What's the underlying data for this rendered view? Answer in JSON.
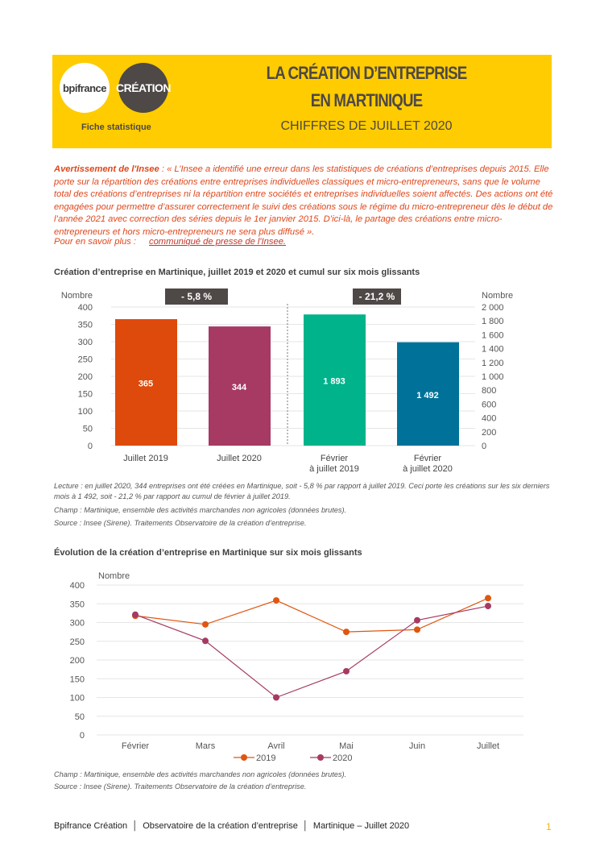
{
  "header": {
    "logo1": "bpifrance",
    "logo2": "CRÉATION",
    "subtitle": "Fiche statistique",
    "title1": "LA CRÉATION D’ENTREPRISE",
    "title2": "EN MARTINIQUE",
    "title3": "CHIFFRES DE JUILLET 2020"
  },
  "warning": {
    "lead": "Avertissement de l'Insee",
    "text": " : « L’Insee a identifié une erreur dans les statistiques de créations d’entreprises depuis 2015. Elle porte sur la répartition des créations entre entreprises individuelles classiques et micro-entrepreneurs, sans que le volume total des créations d’entreprises ni la répartition entre sociétés et entreprises individuelles soient affectés. Des actions ont été engagées pour permettre d’assurer correctement le suivi des créations sous le régime du micro-entrepreneur dès le début de l’année 2021 avec correction des séries depuis le 1er janvier 2015. D’ici-là, le partage des créations entre micro-entrepreneurs et hors micro-entrepreneurs ne sera plus diffusé ».",
    "more_label": "Pour en savoir plus :",
    "more_link": "communiqué de presse de l'Insee."
  },
  "chart_data": [
    {
      "type": "bar",
      "title": "Création d’entreprise en Martinique, juillet 2019 et 2020 et cumul sur six mois glissants",
      "ylabel": "Nombre",
      "ylabel_right": "Nombre",
      "ylim": [
        0,
        400
      ],
      "ylim_right": [
        0,
        2000
      ],
      "yticks": [
        "0",
        "50",
        "100",
        "150",
        "200",
        "250",
        "300",
        "350",
        "400"
      ],
      "yticks_right": [
        "0",
        "200",
        "400",
        "600",
        "800",
        "1 000",
        "1 200",
        "1 400",
        "1 600",
        "1 800",
        "2 000"
      ],
      "bars": [
        {
          "label1": "Juillet 2019",
          "label2": "",
          "value": 365,
          "display": "365",
          "axis": "left",
          "color": "#de4a0b"
        },
        {
          "label1": "Juillet 2020",
          "label2": "",
          "value": 344,
          "display": "344",
          "axis": "left",
          "color": "#a63a63"
        },
        {
          "label1": "Février",
          "label2": "à juillet 2019",
          "value": 1893,
          "display": "1 893",
          "axis": "right",
          "color": "#00b38a"
        },
        {
          "label1": "Février",
          "label2": "à juillet 2020",
          "value": 1492,
          "display": "1 492",
          "axis": "right",
          "color": "#00729a"
        }
      ],
      "badges": [
        "- 5,8 %",
        "- 21,2 %"
      ]
    },
    {
      "type": "line",
      "title": "Évolution de la création d’entreprise en Martinique sur six mois glissants",
      "ylabel": "Nombre",
      "ylim": [
        0,
        400
      ],
      "yticks": [
        "0",
        "50",
        "100",
        "150",
        "200",
        "250",
        "300",
        "350",
        "400"
      ],
      "categories": [
        "Février",
        "Mars",
        "Avril",
        "Mai",
        "Juin",
        "Juillet"
      ],
      "series": [
        {
          "name": "2019",
          "color": "#e0560f",
          "values": [
            318,
            295,
            359,
            275,
            281,
            365
          ]
        },
        {
          "name": "2020",
          "color": "#a63a63",
          "values": [
            321,
            251,
            100,
            170,
            306,
            344
          ]
        }
      ]
    }
  ],
  "notes1": {
    "lecture": "Lecture : en juillet 2020, 344 entreprises ont été créées en Martinique, soit - 5,8 % par rapport à juillet 2019. Ceci porte les créations sur les six derniers mois à 1 492, soit - 21,2 % par rapport au cumul de février à juillet 2019.",
    "champ": "Champ : Martinique, ensemble des activités marchandes non agricoles (données brutes).",
    "source": "Source : Insee (Sirene). Traitements Observatoire de la création d’entreprise."
  },
  "notes2": {
    "champ": "Champ : Martinique, ensemble des activités marchandes non agricoles (données brutes).",
    "source": "Source : Insee (Sirene). Traitements Observatoire de la création d’entreprise."
  },
  "footer": {
    "text": "Bpifrance Création  │  Observatoire de la création d’entreprise  │  Martinique – Juillet 2020",
    "page": "1"
  }
}
